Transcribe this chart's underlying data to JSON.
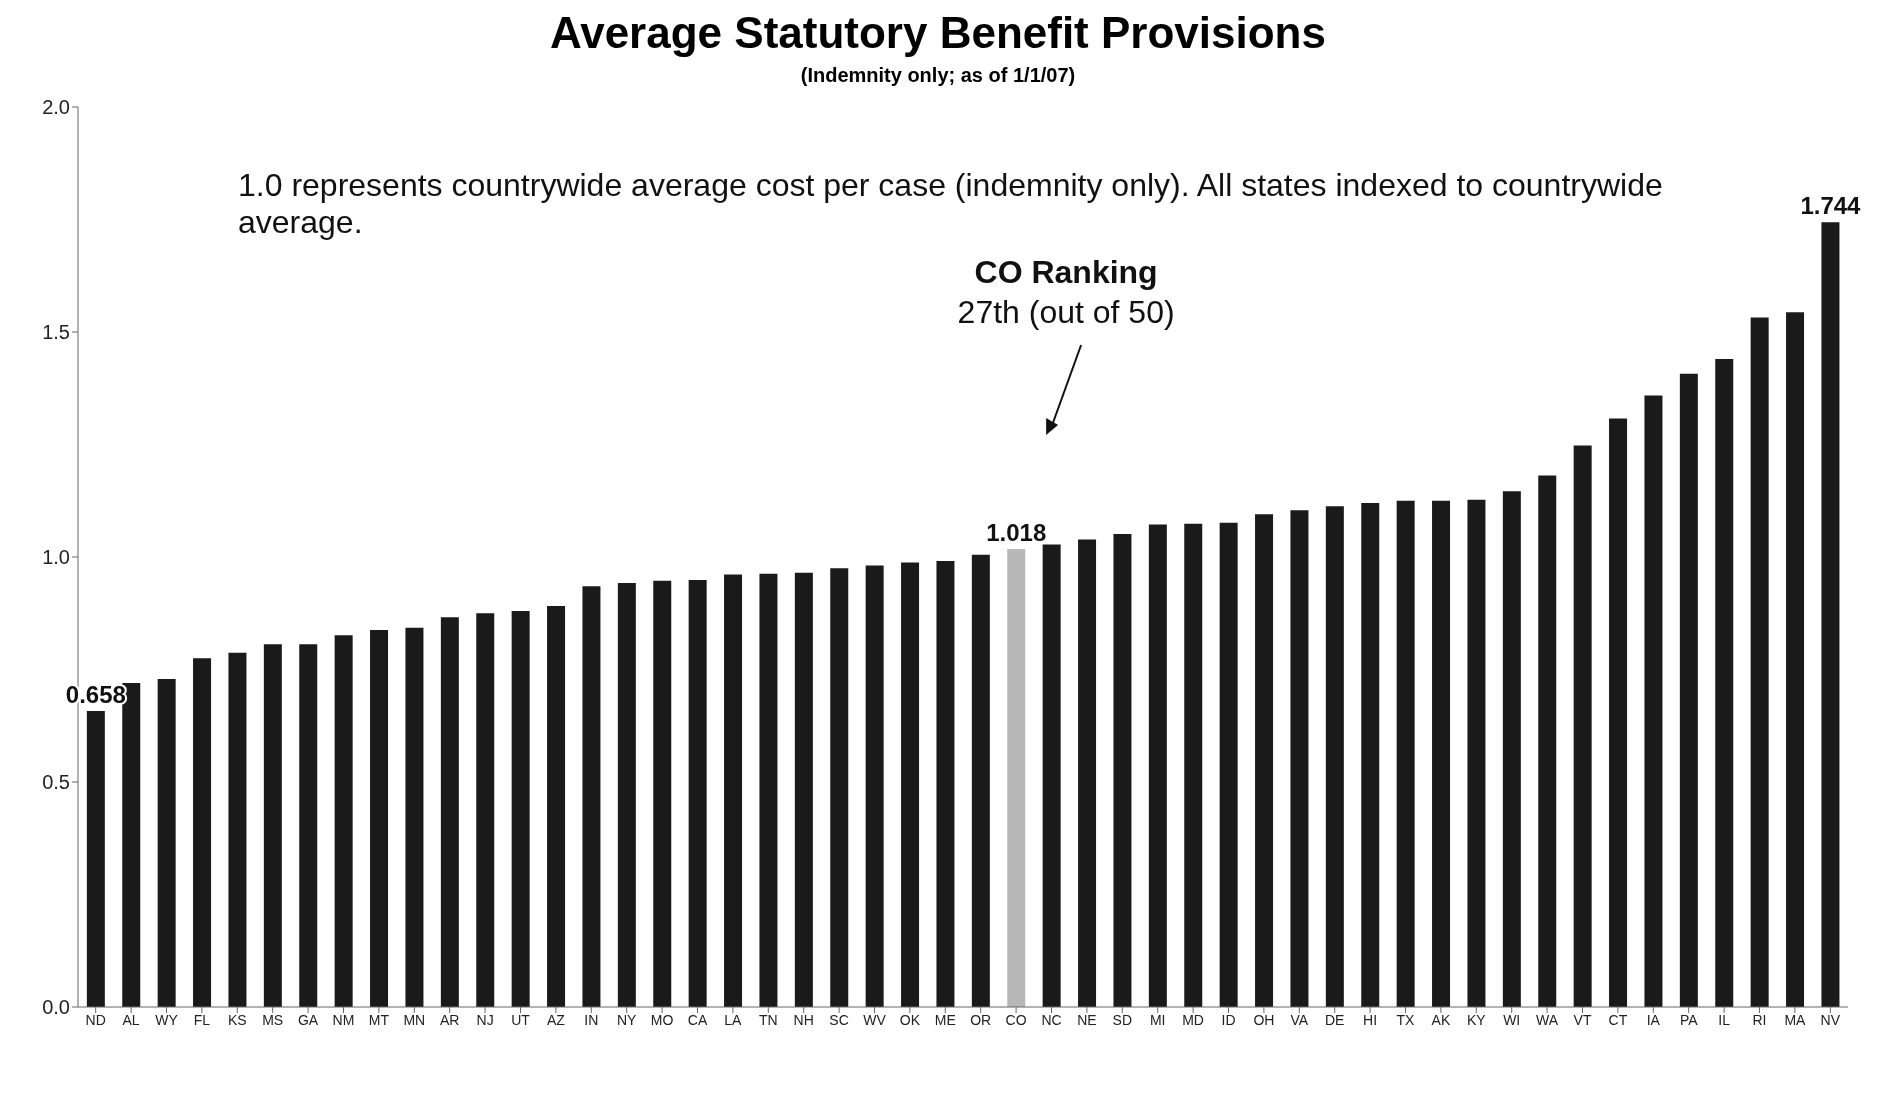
{
  "chart_data": {
    "type": "bar",
    "title": "Average Statutory Benefit Provisions",
    "subtitle": "(Indemnity only; as of 1/1/07)",
    "categories": [
      "ND",
      "AL",
      "WY",
      "FL",
      "KS",
      "MS",
      "GA",
      "NM",
      "MT",
      "MN",
      "AR",
      "NJ",
      "UT",
      "AZ",
      "IN",
      "NY",
      "MO",
      "CA",
      "LA",
      "TN",
      "NH",
      "SC",
      "WV",
      "OK",
      "ME",
      "OR",
      "CO",
      "NC",
      "NE",
      "SD",
      "MI",
      "MD",
      "ID",
      "OH",
      "VA",
      "DE",
      "HI",
      "TX",
      "AK",
      "KY",
      "WI",
      "WA",
      "VT",
      "CT",
      "IA",
      "PA",
      "IL",
      "RI",
      "MA",
      "NV"
    ],
    "values": [
      0.658,
      0.72,
      0.729,
      0.775,
      0.787,
      0.806,
      0.806,
      0.826,
      0.838,
      0.843,
      0.866,
      0.875,
      0.88,
      0.891,
      0.935,
      0.942,
      0.947,
      0.949,
      0.961,
      0.963,
      0.965,
      0.975,
      0.981,
      0.988,
      0.991,
      1.005,
      1.018,
      1.028,
      1.039,
      1.051,
      1.072,
      1.074,
      1.076,
      1.095,
      1.104,
      1.113,
      1.12,
      1.125,
      1.125,
      1.127,
      1.146,
      1.181,
      1.248,
      1.308,
      1.359,
      1.407,
      1.44,
      1.532,
      1.544,
      1.744
    ],
    "colors": [
      "#1a1a1a",
      "#1a1a1a",
      "#1a1a1a",
      "#1a1a1a",
      "#1a1a1a",
      "#1a1a1a",
      "#1a1a1a",
      "#1a1a1a",
      "#1a1a1a",
      "#1a1a1a",
      "#1a1a1a",
      "#1a1a1a",
      "#1a1a1a",
      "#1a1a1a",
      "#1a1a1a",
      "#1a1a1a",
      "#1a1a1a",
      "#1a1a1a",
      "#1a1a1a",
      "#1a1a1a",
      "#1a1a1a",
      "#1a1a1a",
      "#1a1a1a",
      "#1a1a1a",
      "#1a1a1a",
      "#1a1a1a",
      "#b8b8b8",
      "#1a1a1a",
      "#1a1a1a",
      "#1a1a1a",
      "#1a1a1a",
      "#1a1a1a",
      "#1a1a1a",
      "#1a1a1a",
      "#1a1a1a",
      "#1a1a1a",
      "#1a1a1a",
      "#1a1a1a",
      "#1a1a1a",
      "#1a1a1a",
      "#1a1a1a",
      "#1a1a1a",
      "#1a1a1a",
      "#1a1a1a",
      "#1a1a1a",
      "#1a1a1a",
      "#1a1a1a",
      "#1a1a1a",
      "#1a1a1a",
      "#1a1a1a"
    ],
    "value_labels": [
      "0.658",
      null,
      null,
      null,
      null,
      null,
      null,
      null,
      null,
      null,
      null,
      null,
      null,
      null,
      null,
      null,
      null,
      null,
      null,
      null,
      null,
      null,
      null,
      null,
      null,
      null,
      "1.018",
      null,
      null,
      null,
      null,
      null,
      null,
      null,
      null,
      null,
      null,
      null,
      null,
      null,
      null,
      null,
      null,
      null,
      null,
      null,
      null,
      null,
      null,
      "1.744"
    ],
    "ylim": [
      0,
      2
    ],
    "yticks": [
      {
        "value": 0,
        "label": "0.0"
      },
      {
        "value": 0.5,
        "label": "0.5"
      },
      {
        "value": 1,
        "label": "1.0"
      },
      {
        "value": 1.5,
        "label": "1.5"
      },
      {
        "value": 2,
        "label": "2.0"
      }
    ],
    "annotations": [
      "1.0 represents countrywide average cost per case (indemnity only). All states indexed to countrywide average.",
      "CO Ranking\n27th (out of 50)"
    ],
    "grid": false,
    "legend": false
  }
}
